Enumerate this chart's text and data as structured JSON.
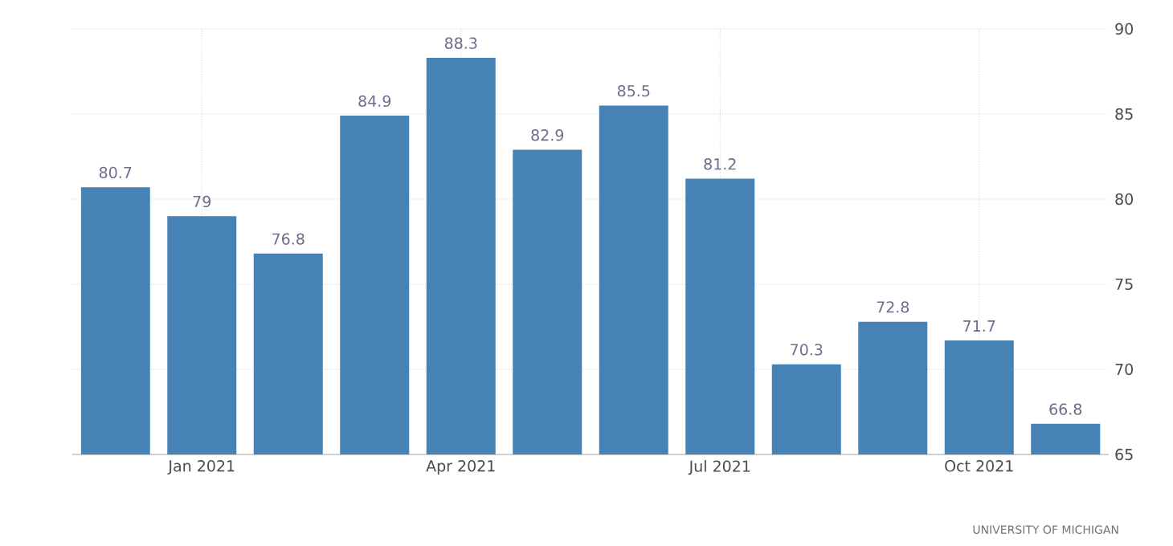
{
  "chart_data": {
    "type": "bar",
    "categories": [
      null,
      "Jan 2021",
      null,
      null,
      "Apr 2021",
      null,
      null,
      "Jul 2021",
      null,
      null,
      "Oct 2021",
      null
    ],
    "values": [
      80.7,
      79,
      76.8,
      84.9,
      88.3,
      82.9,
      85.5,
      81.2,
      70.3,
      72.8,
      71.7,
      66.8
    ],
    "color": "#4682b4",
    "ylim": [
      65,
      90
    ],
    "yticks": [
      65,
      70,
      75,
      80,
      85,
      90
    ],
    "grid": true,
    "data_labels": true,
    "annotations": [
      "UNIVERSITY OF MICHIGAN"
    ]
  }
}
